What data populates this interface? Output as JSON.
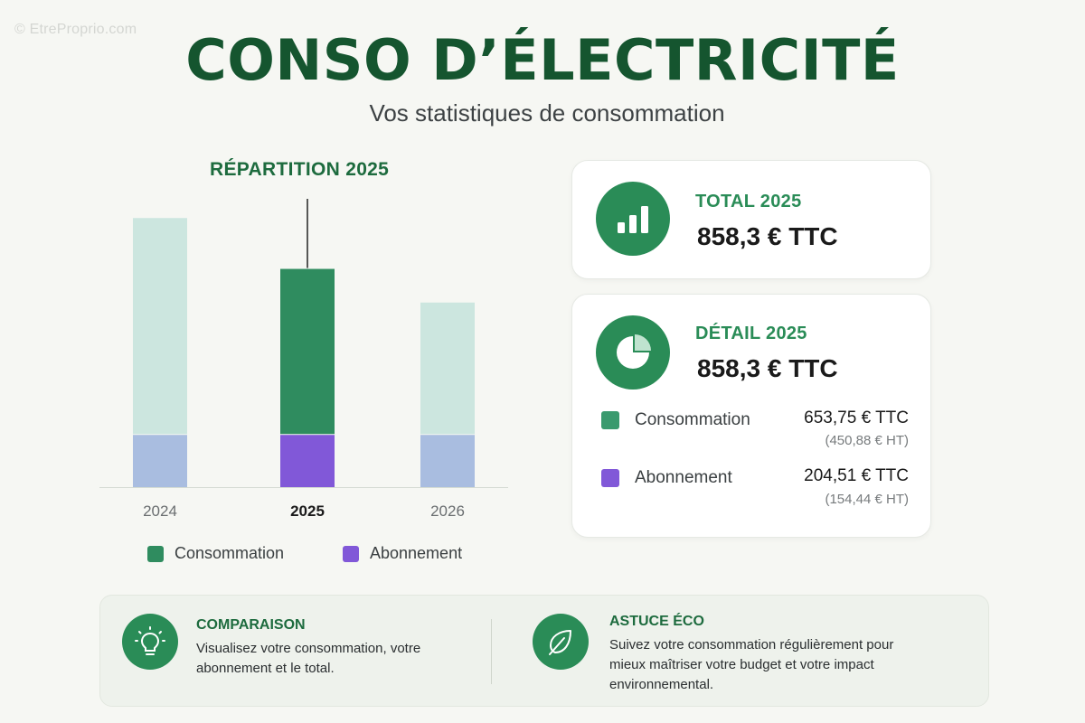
{
  "watermark": "© EtreProprio.com",
  "title": "CONSO D’ÉLECTRICITÉ",
  "subtitle": "Vos statistiques de consommation",
  "chart_data": {
    "type": "bar",
    "title": "RÉPARTITION 2025",
    "categories": [
      "2024",
      "2025",
      "2026"
    ],
    "highlighted_category": "2025",
    "stacked": true,
    "series": [
      {
        "name": "Abonnement",
        "values": [
          204.51,
          204.51,
          204.51
        ],
        "color": "#8158d8",
        "muted_color": "#a9bde0"
      },
      {
        "name": "Consommation",
        "values": [
          853,
          653.75,
          522
        ],
        "color": "#2f8c5f",
        "muted_color": "#cce6df"
      }
    ],
    "ylim": [
      0,
      1200
    ],
    "grid": false,
    "legend_position": "bottom",
    "xlabel": "",
    "ylabel": ""
  },
  "legend": {
    "items": [
      {
        "label": "Consommation",
        "color": "#2f8c5f"
      },
      {
        "label": "Abonnement",
        "color": "#8158d8"
      }
    ]
  },
  "total_card": {
    "label": "TOTAL 2025",
    "value": "858,3 € TTC",
    "icon": "bar-chart-icon"
  },
  "detail_card": {
    "label": "DÉTAIL 2025",
    "value": "858,3 € TTC",
    "icon": "pie-chart-icon",
    "rows": [
      {
        "label": "Consommation",
        "ttc": "653,75 € TTC",
        "ht": "(450,88 € HT)",
        "color": "#3a9a6e"
      },
      {
        "label": "Abonnement",
        "ttc": "204,51 € TTC",
        "ht": "(154,44 € HT)",
        "color": "#8158d8"
      }
    ]
  },
  "tips": [
    {
      "title": "COMPARAISON",
      "text": "Visualisez votre consommation, votre abonnement et le total.",
      "icon": "lightbulb-icon"
    },
    {
      "title": "ASTUCE ÉCO",
      "text": "Suivez votre consommation régulièrement pour mieux maîtriser votre budget et votre impact environnemental.",
      "icon": "leaf-icon"
    }
  ],
  "colors": {
    "brand_dark": "#15552f",
    "brand": "#2a8c57",
    "purple": "#8158d8"
  }
}
